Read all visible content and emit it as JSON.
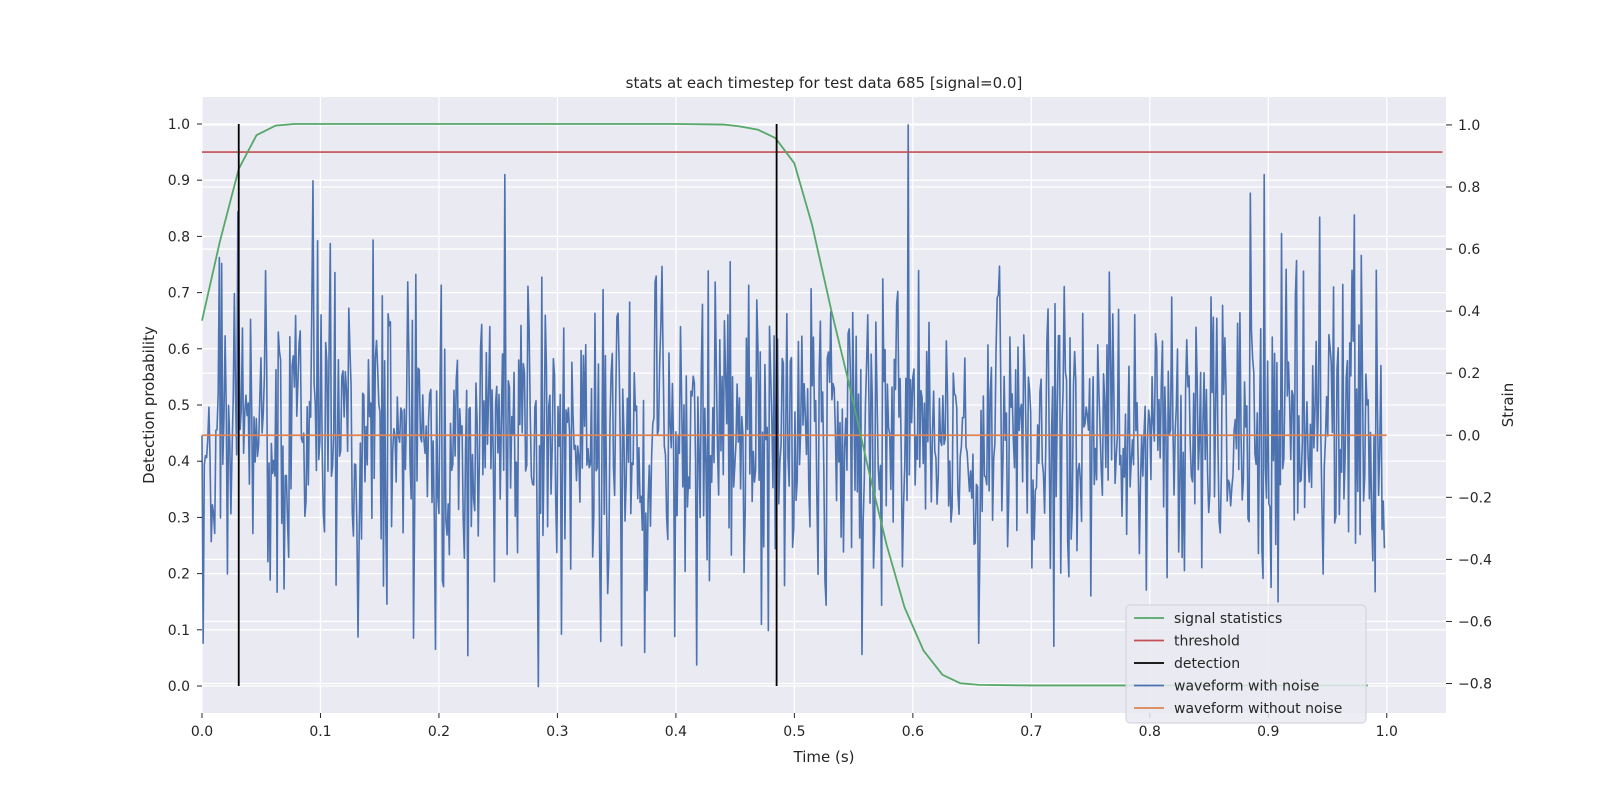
{
  "chart_data": {
    "type": "line",
    "title": "stats at each timestep for test data 685 [signal=0.0]",
    "xlabel": "Time (s)",
    "ylabel_left": "Detection probability",
    "ylabel_right": "Strain",
    "xlim": [
      0.0,
      1.05
    ],
    "ylim_left": [
      -0.048,
      1.048
    ],
    "ylim_right": [
      -0.895,
      1.09
    ],
    "x_ticks": [
      "0.0",
      "0.1",
      "0.2",
      "0.3",
      "0.4",
      "0.5",
      "0.6",
      "0.7",
      "0.8",
      "0.9",
      "1.0"
    ],
    "x_tick_values": [
      0.0,
      0.1,
      0.2,
      0.3,
      0.4,
      0.5,
      0.6,
      0.7,
      0.8,
      0.9,
      1.0
    ],
    "y_left_ticks": [
      "0.0",
      "0.1",
      "0.2",
      "0.3",
      "0.4",
      "0.5",
      "0.6",
      "0.7",
      "0.8",
      "0.9",
      "1.0"
    ],
    "y_left_tick_values": [
      0.0,
      0.1,
      0.2,
      0.3,
      0.4,
      0.5,
      0.6,
      0.7,
      0.8,
      0.9,
      1.0
    ],
    "y_right_ticks": [
      "−0.8",
      "−0.6",
      "−0.4",
      "−0.2",
      "0.0",
      "0.2",
      "0.4",
      "0.6",
      "0.8",
      "1.0"
    ],
    "y_right_tick_values": [
      -0.8,
      -0.6,
      -0.4,
      -0.2,
      0.0,
      0.2,
      0.4,
      0.6,
      0.8,
      1.0
    ],
    "grid": true,
    "legend_position": "lower-right",
    "colors": {
      "background": "#eaeaf2",
      "grid": "#ffffff",
      "signal_statistics": "#55a868",
      "threshold": "#c44e52",
      "detection": "#000000",
      "waveform_with_noise": "#4c72b0",
      "waveform_without_noise": "#dd8452"
    },
    "series": [
      {
        "name": "signal statistics",
        "axis": "left",
        "x": [
          0.0,
          0.015,
          0.031,
          0.046,
          0.062,
          0.078,
          0.1,
          0.2,
          0.3,
          0.4,
          0.44,
          0.453,
          0.469,
          0.484,
          0.5,
          0.515,
          0.531,
          0.547,
          0.562,
          0.578,
          0.593,
          0.609,
          0.625,
          0.64,
          0.656,
          0.7,
          0.8,
          0.9,
          0.984
        ],
        "y": [
          0.65,
          0.79,
          0.92,
          0.98,
          0.997,
          1.0,
          1.0,
          1.0,
          1.0,
          1.0,
          0.999,
          0.996,
          0.99,
          0.975,
          0.93,
          0.82,
          0.67,
          0.53,
          0.39,
          0.25,
          0.14,
          0.063,
          0.02,
          0.005,
          0.002,
          0.001,
          0.001,
          0.001,
          0.001
        ]
      },
      {
        "name": "threshold",
        "axis": "left",
        "x": [
          0.0,
          1.047
        ],
        "y": [
          0.95,
          0.95
        ]
      },
      {
        "name": "detection",
        "axis": "left",
        "type": "vlines",
        "x": [
          0.031,
          0.485
        ],
        "y_range": [
          0.0,
          1.0
        ]
      },
      {
        "name": "waveform with noise",
        "axis": "right",
        "x_range": [
          0.0,
          0.998
        ],
        "samples": 1024,
        "approx_std": 0.25,
        "y_min": -0.81,
        "y_max": 1.0,
        "peaks": [
          {
            "x": 0.094,
            "y": 0.82
          },
          {
            "x": 0.256,
            "y": 0.84
          },
          {
            "x": 0.596,
            "y": 1.0
          },
          {
            "x": 0.885,
            "y": 0.78
          },
          {
            "x": 0.897,
            "y": 0.84
          },
          {
            "x": 0.973,
            "y": 0.71
          },
          {
            "x": 0.284,
            "y": -0.81
          },
          {
            "x": 0.224,
            "y": -0.71
          },
          {
            "x": 0.418,
            "y": -0.74
          },
          {
            "x": 0.374,
            "y": -0.7
          },
          {
            "x": 0.656,
            "y": -0.67
          },
          {
            "x": 0.719,
            "y": -0.68
          },
          {
            "x": 0.197,
            "y": -0.69
          },
          {
            "x": 0.001,
            "y": -0.67
          },
          {
            "x": 0.132,
            "y": -0.65
          }
        ]
      },
      {
        "name": "waveform without noise",
        "axis": "right",
        "x": [
          0.0,
          1.0
        ],
        "y": [
          0.0,
          0.0
        ]
      }
    ],
    "legend": [
      {
        "label": "signal statistics",
        "color": "#55a868"
      },
      {
        "label": "threshold",
        "color": "#c44e52"
      },
      {
        "label": "detection",
        "color": "#000000"
      },
      {
        "label": "waveform with noise",
        "color": "#4c72b0"
      },
      {
        "label": "waveform without noise",
        "color": "#dd8452"
      }
    ]
  }
}
